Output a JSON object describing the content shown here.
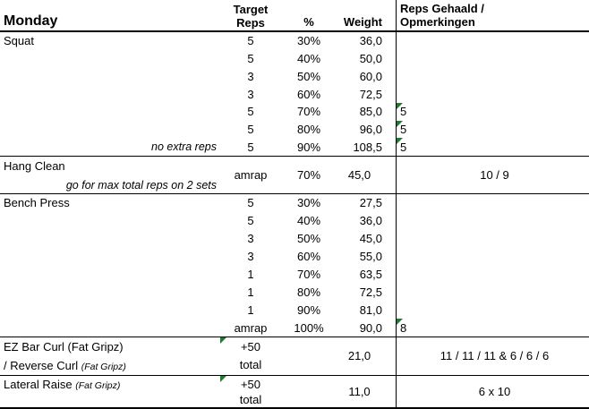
{
  "colors": {
    "flag_green": "#1e7b2f",
    "border_black": "#000000",
    "background": "#ffffff"
  },
  "header": {
    "day": "Monday",
    "target_col_line1": "Target",
    "target_col_line2": "Reps",
    "percent_col": "%",
    "weight_col": "Weight",
    "result_col_line1": "Reps Gehaald /",
    "result_col_line2": "Opmerkingen"
  },
  "sections": [
    {
      "kind": "rows",
      "name": "Squat",
      "rows": [
        {
          "target": "5",
          "percent": "30%",
          "weight": "36,0",
          "result": "",
          "flag": false,
          "note": ""
        },
        {
          "target": "5",
          "percent": "40%",
          "weight": "50,0",
          "result": "",
          "flag": false,
          "note": ""
        },
        {
          "target": "3",
          "percent": "50%",
          "weight": "60,0",
          "result": "",
          "flag": false,
          "note": ""
        },
        {
          "target": "3",
          "percent": "60%",
          "weight": "72,5",
          "result": "",
          "flag": false,
          "note": ""
        },
        {
          "target": "5",
          "percent": "70%",
          "weight": "85,0",
          "result": "5",
          "flag": true,
          "note": ""
        },
        {
          "target": "5",
          "percent": "80%",
          "weight": "96,0",
          "result": "5",
          "flag": true,
          "note": ""
        },
        {
          "target": "5",
          "percent": "90%",
          "weight": "108,5",
          "result": "5",
          "flag": true,
          "note": "no extra reps"
        }
      ]
    },
    {
      "kind": "merged",
      "name_line1": [
        {
          "text": "Hang Clean",
          "style": "normal"
        }
      ],
      "name_line2": [
        {
          "text": "go for max total reps on 2 sets",
          "style": "note"
        }
      ],
      "name_line2_align": "right",
      "target_lines": [
        "amrap"
      ],
      "target_flag": false,
      "percent": "70%",
      "weight": "45,0",
      "result": "10 / 9"
    },
    {
      "kind": "rows",
      "name": "Bench Press",
      "rows": [
        {
          "target": "5",
          "percent": "30%",
          "weight": "27,5",
          "result": "",
          "flag": false,
          "note": ""
        },
        {
          "target": "5",
          "percent": "40%",
          "weight": "36,0",
          "result": "",
          "flag": false,
          "note": ""
        },
        {
          "target": "3",
          "percent": "50%",
          "weight": "45,0",
          "result": "",
          "flag": false,
          "note": ""
        },
        {
          "target": "3",
          "percent": "60%",
          "weight": "55,0",
          "result": "",
          "flag": false,
          "note": ""
        },
        {
          "target": "1",
          "percent": "70%",
          "weight": "63,5",
          "result": "",
          "flag": false,
          "note": ""
        },
        {
          "target": "1",
          "percent": "80%",
          "weight": "72,5",
          "result": "",
          "flag": false,
          "note": ""
        },
        {
          "target": "1",
          "percent": "90%",
          "weight": "81,0",
          "result": "",
          "flag": false,
          "note": ""
        },
        {
          "target": "amrap",
          "percent": "100%",
          "weight": "90,0",
          "result": "8",
          "flag": true,
          "note": ""
        }
      ]
    },
    {
      "kind": "merged",
      "name_line1": [
        {
          "text": "EZ Bar Curl (Fat Gripz)",
          "style": "normal"
        }
      ],
      "name_line2": [
        {
          "text": "/ Reverse Curl ",
          "style": "normal"
        },
        {
          "text": "(Fat Gripz)",
          "style": "paren"
        }
      ],
      "name_line2_align": "left",
      "target_lines": [
        "+50",
        "total"
      ],
      "target_flag": true,
      "percent": "",
      "weight": "21,0",
      "result": "11 / 11 / 11 & 6 / 6 / 6"
    },
    {
      "kind": "merged",
      "name_line1": [
        {
          "text": "Lateral Raise ",
          "style": "normal"
        },
        {
          "text": "(Fat Gripz)",
          "style": "paren"
        }
      ],
      "name_line2": null,
      "name_line2_align": "left",
      "target_lines": [
        "+50",
        "total"
      ],
      "target_flag": true,
      "percent": "",
      "weight": "11,0",
      "result": "6 x 10"
    }
  ]
}
